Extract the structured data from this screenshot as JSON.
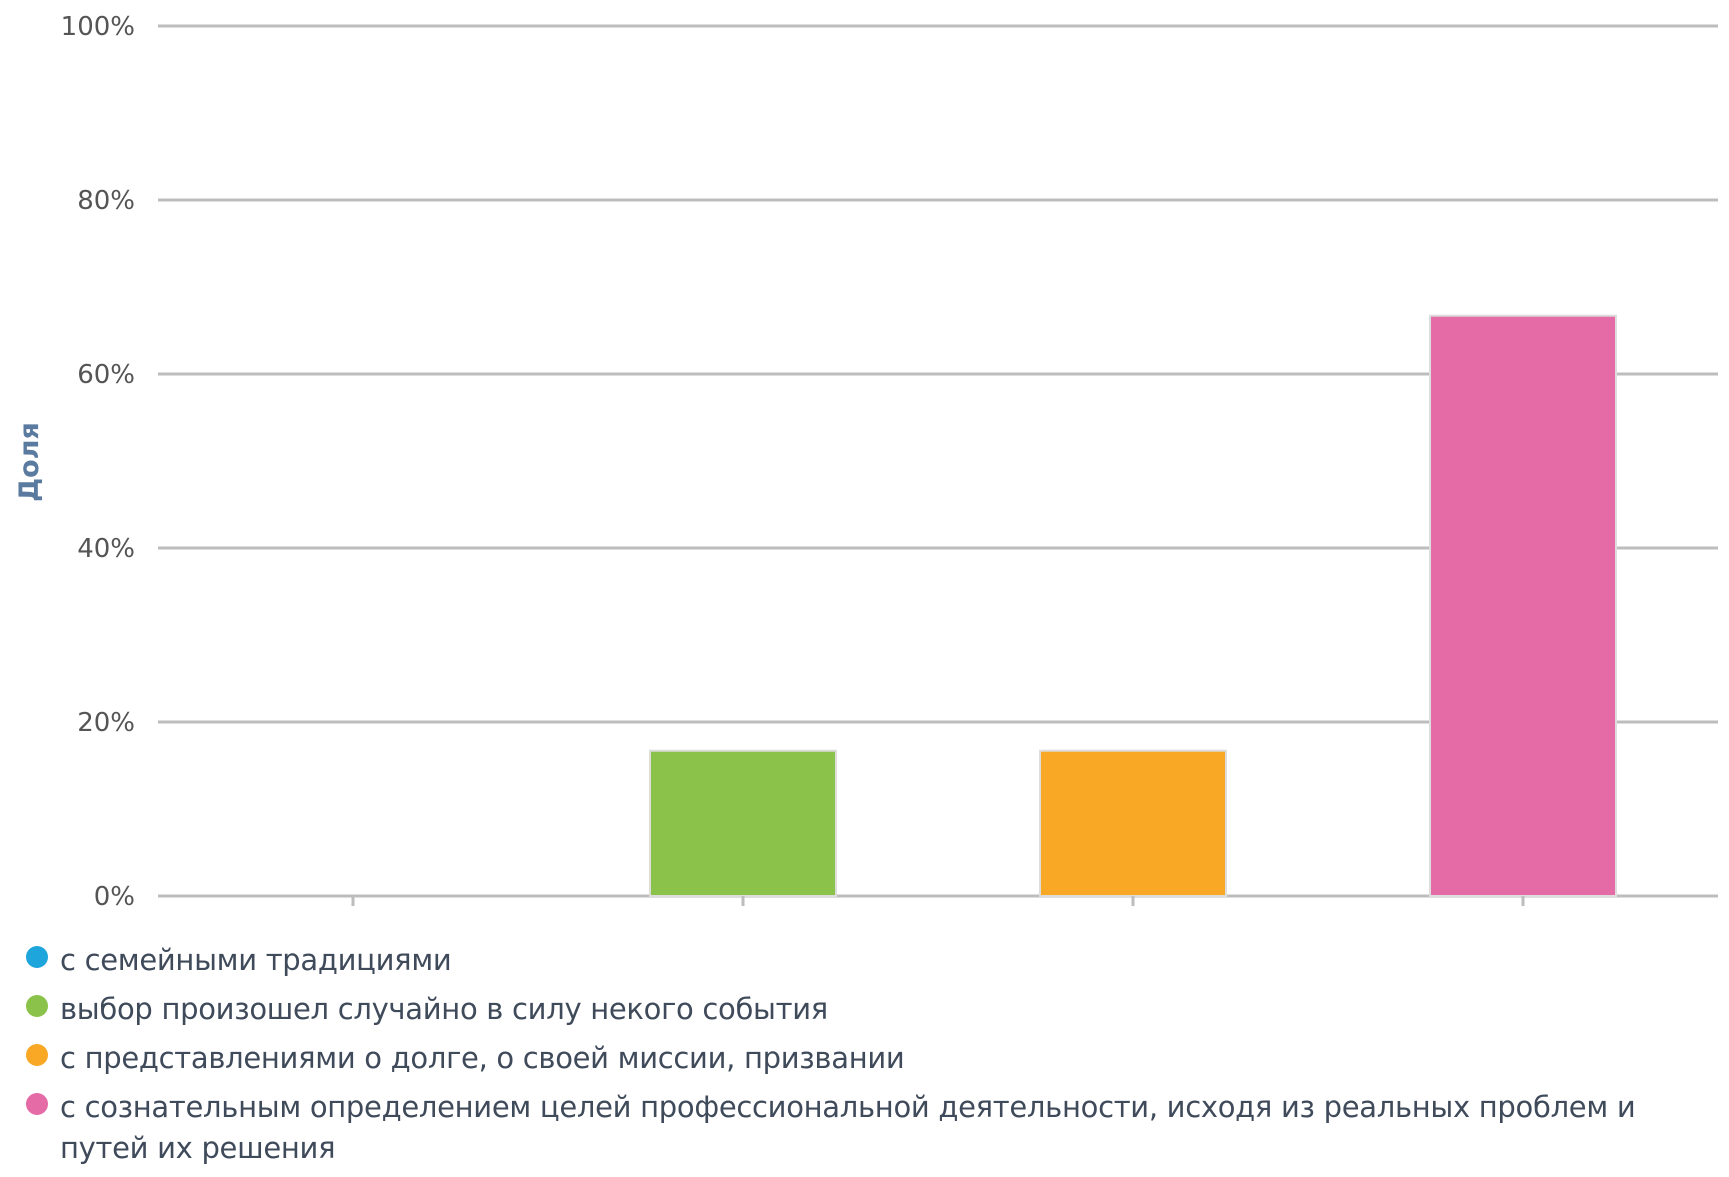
{
  "chart_data": {
    "type": "bar",
    "categories": [
      "с семейными традициями",
      "выбор произошел случайно в силу некого события",
      "с представлениями о долге, о своей миссии, призвании",
      "с сознательным определением целей профессиональной деятельности, исходя из реальных проблем и путей их решения"
    ],
    "values": [
      0,
      16.7,
      16.7,
      66.7
    ],
    "colors": [
      "#1ea5dc",
      "#8bc34a",
      "#f9a825",
      "#e46ba6"
    ],
    "ylabel": "Доля",
    "xlabel": "",
    "ylim": [
      0,
      100
    ],
    "yticks": [
      "0%",
      "20%",
      "40%",
      "60%",
      "80%",
      "100%"
    ],
    "grid": true,
    "legend_position": "bottom"
  },
  "legend": {
    "items": [
      {
        "label": "с семейными традициями",
        "color": "#1ea5dc"
      },
      {
        "label": "выбор произошел случайно в силу некого события",
        "color": "#8bc34a"
      },
      {
        "label": "с представлениями о долге, о своей миссии, призвании",
        "color": "#f9a825"
      },
      {
        "label": "с сознательным определением целей профессиональной деятельности, исходя из реальных проблем и путей их решения",
        "color": "#e46ba6"
      }
    ]
  }
}
